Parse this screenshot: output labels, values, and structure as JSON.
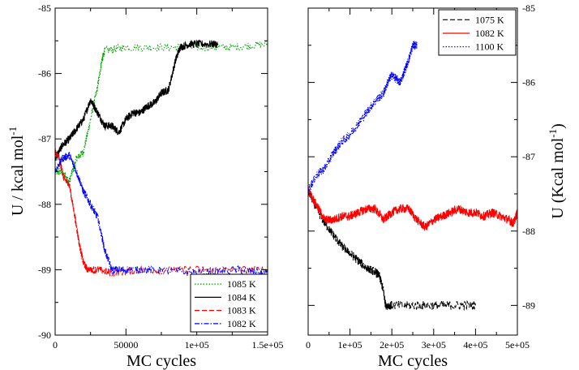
{
  "chart_data": [
    {
      "type": "line",
      "xlabel": "MC cycles",
      "ylabel": "U / kcal mol",
      "ylabel_sup": "-1",
      "xlim": [
        0,
        150000
      ],
      "ylim": [
        -90,
        -85
      ],
      "x_ticks": [
        0,
        50000,
        100000,
        150000
      ],
      "x_tick_labels": [
        "0",
        "50000",
        "1e+05",
        "1.5e+05"
      ],
      "y_ticks": [
        -90,
        -89,
        -88,
        -87,
        -86,
        -85
      ],
      "y_tick_labels": [
        "-90",
        "-89",
        "-88",
        "-87",
        "-86",
        "-85"
      ],
      "y_axis_side": "left",
      "legend_position": "bottom-right",
      "series": [
        {
          "name": "1085 K",
          "color": "#00a000",
          "dash": "dotted",
          "points": [
            [
              0,
              -87.5
            ],
            [
              5000,
              -87.5
            ],
            [
              10000,
              -87.65
            ],
            [
              15000,
              -87.3
            ],
            [
              20000,
              -87.2
            ],
            [
              25000,
              -86.7
            ],
            [
              30000,
              -86.2
            ],
            [
              33000,
              -85.8
            ],
            [
              35000,
              -85.65
            ],
            [
              50000,
              -85.6
            ],
            [
              75000,
              -85.6
            ],
            [
              100000,
              -85.6
            ],
            [
              125000,
              -85.6
            ],
            [
              150000,
              -85.55
            ]
          ]
        },
        {
          "name": "1084 K",
          "color": "#000000",
          "dash": "solid",
          "points": [
            [
              0,
              -87.3
            ],
            [
              5000,
              -87.1
            ],
            [
              10000,
              -87.0
            ],
            [
              15000,
              -86.85
            ],
            [
              20000,
              -86.7
            ],
            [
              25000,
              -86.4
            ],
            [
              30000,
              -86.6
            ],
            [
              35000,
              -86.8
            ],
            [
              40000,
              -86.8
            ],
            [
              45000,
              -86.9
            ],
            [
              50000,
              -86.7
            ],
            [
              55000,
              -86.6
            ],
            [
              60000,
              -86.6
            ],
            [
              65000,
              -86.5
            ],
            [
              70000,
              -86.45
            ],
            [
              75000,
              -86.3
            ],
            [
              80000,
              -86.25
            ],
            [
              85000,
              -85.8
            ],
            [
              88000,
              -85.6
            ],
            [
              95000,
              -85.55
            ],
            [
              105000,
              -85.55
            ],
            [
              115000,
              -85.55
            ]
          ]
        },
        {
          "name": "1083 K",
          "color": "#ff0000",
          "dash": "dashed",
          "points": [
            [
              0,
              -87.2
            ],
            [
              3000,
              -87.3
            ],
            [
              6000,
              -87.6
            ],
            [
              10000,
              -87.7
            ],
            [
              14000,
              -88.2
            ],
            [
              17000,
              -88.6
            ],
            [
              20000,
              -88.9
            ],
            [
              23000,
              -89.0
            ],
            [
              30000,
              -89.0
            ],
            [
              40000,
              -89.05
            ],
            [
              60000,
              -89.0
            ],
            [
              90000,
              -89.0
            ],
            [
              120000,
              -89.0
            ],
            [
              150000,
              -89.0
            ]
          ]
        },
        {
          "name": "1082 K",
          "color": "#0000ff",
          "dash": "dashdot",
          "points": [
            [
              0,
              -87.5
            ],
            [
              5000,
              -87.3
            ],
            [
              10000,
              -87.25
            ],
            [
              15000,
              -87.5
            ],
            [
              20000,
              -87.8
            ],
            [
              25000,
              -88.0
            ],
            [
              30000,
              -88.2
            ],
            [
              35000,
              -88.7
            ],
            [
              40000,
              -89.0
            ],
            [
              50000,
              -89.0
            ],
            [
              70000,
              -89.0
            ],
            [
              100000,
              -89.05
            ],
            [
              130000,
              -89.0
            ],
            [
              150000,
              -89.05
            ]
          ]
        }
      ]
    },
    {
      "type": "line",
      "xlabel": "MC cycles",
      "ylabel": "U (Kcal mol",
      "ylabel_sup": "-1",
      "ylabel_close": ")",
      "xlim": [
        0,
        500000
      ],
      "ylim": [
        -89.4,
        -85
      ],
      "x_ticks": [
        0,
        100000,
        200000,
        300000,
        400000,
        500000
      ],
      "x_tick_labels": [
        "0",
        "1e+05",
        "2e+05",
        "3e+05",
        "4e+05",
        "5e+05"
      ],
      "y_ticks": [
        -89,
        -88,
        -87,
        -86,
        -85
      ],
      "y_tick_labels": [
        "-89",
        "-88",
        "-87",
        "-86",
        "-85"
      ],
      "y_axis_side": "right",
      "legend_position": "top-right",
      "series": [
        {
          "name": "1075 K",
          "color": "#000000",
          "dash": "dashed",
          "points": [
            [
              0,
              -87.45
            ],
            [
              20000,
              -87.7
            ],
            [
              40000,
              -87.9
            ],
            [
              60000,
              -88.05
            ],
            [
              80000,
              -88.2
            ],
            [
              100000,
              -88.3
            ],
            [
              120000,
              -88.4
            ],
            [
              140000,
              -88.5
            ],
            [
              160000,
              -88.55
            ],
            [
              170000,
              -88.6
            ],
            [
              180000,
              -88.8
            ],
            [
              185000,
              -89.0
            ],
            [
              200000,
              -89.0
            ],
            [
              250000,
              -89.0
            ],
            [
              300000,
              -89.0
            ],
            [
              350000,
              -89.0
            ],
            [
              400000,
              -89.0
            ]
          ]
        },
        {
          "name": "1082 K",
          "color": "#ff0000",
          "dash": "solid",
          "points": [
            [
              0,
              -87.45
            ],
            [
              20000,
              -87.65
            ],
            [
              40000,
              -87.85
            ],
            [
              60000,
              -87.85
            ],
            [
              80000,
              -87.8
            ],
            [
              100000,
              -87.8
            ],
            [
              120000,
              -87.75
            ],
            [
              140000,
              -87.7
            ],
            [
              160000,
              -87.7
            ],
            [
              180000,
              -87.85
            ],
            [
              200000,
              -87.75
            ],
            [
              220000,
              -87.7
            ],
            [
              240000,
              -87.7
            ],
            [
              260000,
              -87.85
            ],
            [
              280000,
              -87.95
            ],
            [
              300000,
              -87.85
            ],
            [
              320000,
              -87.8
            ],
            [
              340000,
              -87.75
            ],
            [
              360000,
              -87.7
            ],
            [
              380000,
              -87.75
            ],
            [
              400000,
              -87.75
            ],
            [
              420000,
              -87.8
            ],
            [
              440000,
              -87.75
            ],
            [
              460000,
              -87.8
            ],
            [
              480000,
              -87.85
            ],
            [
              490000,
              -87.9
            ],
            [
              500000,
              -87.75
            ]
          ]
        },
        {
          "name": "1100 K",
          "color": "#0000ff",
          "dash": "dotted",
          "points": [
            [
              0,
              -87.45
            ],
            [
              20000,
              -87.25
            ],
            [
              40000,
              -87.15
            ],
            [
              60000,
              -86.95
            ],
            [
              80000,
              -86.8
            ],
            [
              100000,
              -86.7
            ],
            [
              120000,
              -86.55
            ],
            [
              140000,
              -86.4
            ],
            [
              160000,
              -86.25
            ],
            [
              180000,
              -86.15
            ],
            [
              190000,
              -86.0
            ],
            [
              200000,
              -85.9
            ],
            [
              210000,
              -85.95
            ],
            [
              220000,
              -86.0
            ],
            [
              230000,
              -85.85
            ],
            [
              240000,
              -85.7
            ],
            [
              250000,
              -85.5
            ],
            [
              260000,
              -85.5
            ]
          ]
        }
      ]
    }
  ]
}
